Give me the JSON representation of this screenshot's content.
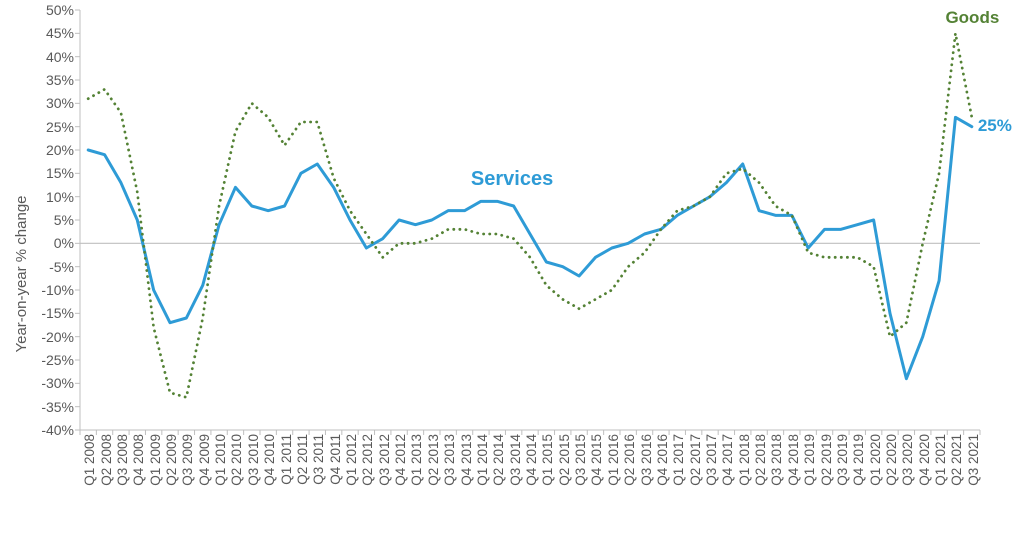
{
  "chart": {
    "type": "line",
    "background_color": "#ffffff",
    "y_axis": {
      "title": "Year-on-year % change",
      "title_fontsize": 15,
      "title_color": "#595959",
      "min": -40,
      "max": 50,
      "tick_step": 5,
      "tick_suffix": "%",
      "tick_fontsize": 14,
      "tick_color": "#595959",
      "zero_line_color": "#bfbfbf",
      "zero_line_width": 1.2,
      "axis_line_color": "#bfbfbf"
    },
    "x_axis": {
      "categories": [
        "Q1 2008",
        "Q2 2008",
        "Q3 2008",
        "Q4 2008",
        "Q1 2009",
        "Q2 2009",
        "Q3 2009",
        "Q4 2009",
        "Q1 2010",
        "Q2 2010",
        "Q3 2010",
        "Q4 2010",
        "Q1 2011",
        "Q2 2011",
        "Q3 2011",
        "Q4 2011",
        "Q1 2012",
        "Q2 2012",
        "Q3 2012",
        "Q4 2012",
        "Q1 2013",
        "Q2 2013",
        "Q3 2013",
        "Q4 2013",
        "Q1 2014",
        "Q2 2014",
        "Q3 2014",
        "Q4 2014",
        "Q1 2015",
        "Q2 2015",
        "Q3 2015",
        "Q4 2015",
        "Q1 2016",
        "Q2 2016",
        "Q3 2016",
        "Q4 2016",
        "Q1 2017",
        "Q2 2017",
        "Q3 2017",
        "Q4 2017",
        "Q1 2018",
        "Q2 2018",
        "Q3 2018",
        "Q4 2018",
        "Q1 2019",
        "Q2 2019",
        "Q3 2019",
        "Q4 2019",
        "Q1 2020",
        "Q2 2020",
        "Q3 2020",
        "Q4 2020",
        "Q1 2021",
        "Q2 2021",
        "Q3 2021"
      ],
      "tick_fontsize": 13.5,
      "tick_color": "#595959",
      "tick_rotation_deg": -90,
      "axis_line_color": "#bfbfbf",
      "tick_mark_color": "#bfbfbf",
      "tick_mark_length": 5
    },
    "series": [
      {
        "name": "Services",
        "label": "Services",
        "type": "line",
        "style": "solid",
        "color": "#2e9bd6",
        "line_width": 3,
        "label_fontsize": 20,
        "label_fontweight": "bold",
        "label_at_index": 24,
        "label_offset_y_pct": 8,
        "end_value_label": "25%",
        "end_value_fontsize": 17,
        "values": [
          20,
          19,
          13,
          5,
          -10,
          -17,
          -16,
          -9,
          4,
          12,
          8,
          7,
          8,
          15,
          17,
          12,
          5,
          -1,
          1,
          5,
          4,
          5,
          7,
          7,
          9,
          9,
          8,
          2,
          -4,
          -5,
          -7,
          -3,
          -1,
          0,
          2,
          3,
          6,
          8,
          10,
          13,
          17,
          7,
          6,
          6,
          -1,
          3,
          3,
          4,
          5,
          -15,
          -29,
          -20,
          -8,
          27,
          25
        ]
      },
      {
        "name": "Goods",
        "label": "Goods",
        "type": "line",
        "style": "dotted",
        "color": "#548235",
        "line_width": 2.8,
        "dot_spacing": 6,
        "label_fontsize": 17,
        "label_fontweight": "bold",
        "label_at_index": 53,
        "label_offset_y_pct": 6,
        "values": [
          31,
          33,
          28,
          11,
          -18,
          -32,
          -33,
          -16,
          8,
          24,
          30,
          27,
          21,
          26,
          26,
          14,
          7,
          2,
          -3,
          0,
          0,
          1,
          3,
          3,
          2,
          2,
          1,
          -3,
          -9,
          -12,
          -14,
          -12,
          -10,
          -5,
          -2,
          3,
          7,
          8,
          10,
          15,
          16,
          13,
          8,
          6,
          -2,
          -3,
          -3,
          -3,
          -5,
          -20,
          -17,
          0,
          15,
          45,
          27
        ]
      }
    ]
  }
}
